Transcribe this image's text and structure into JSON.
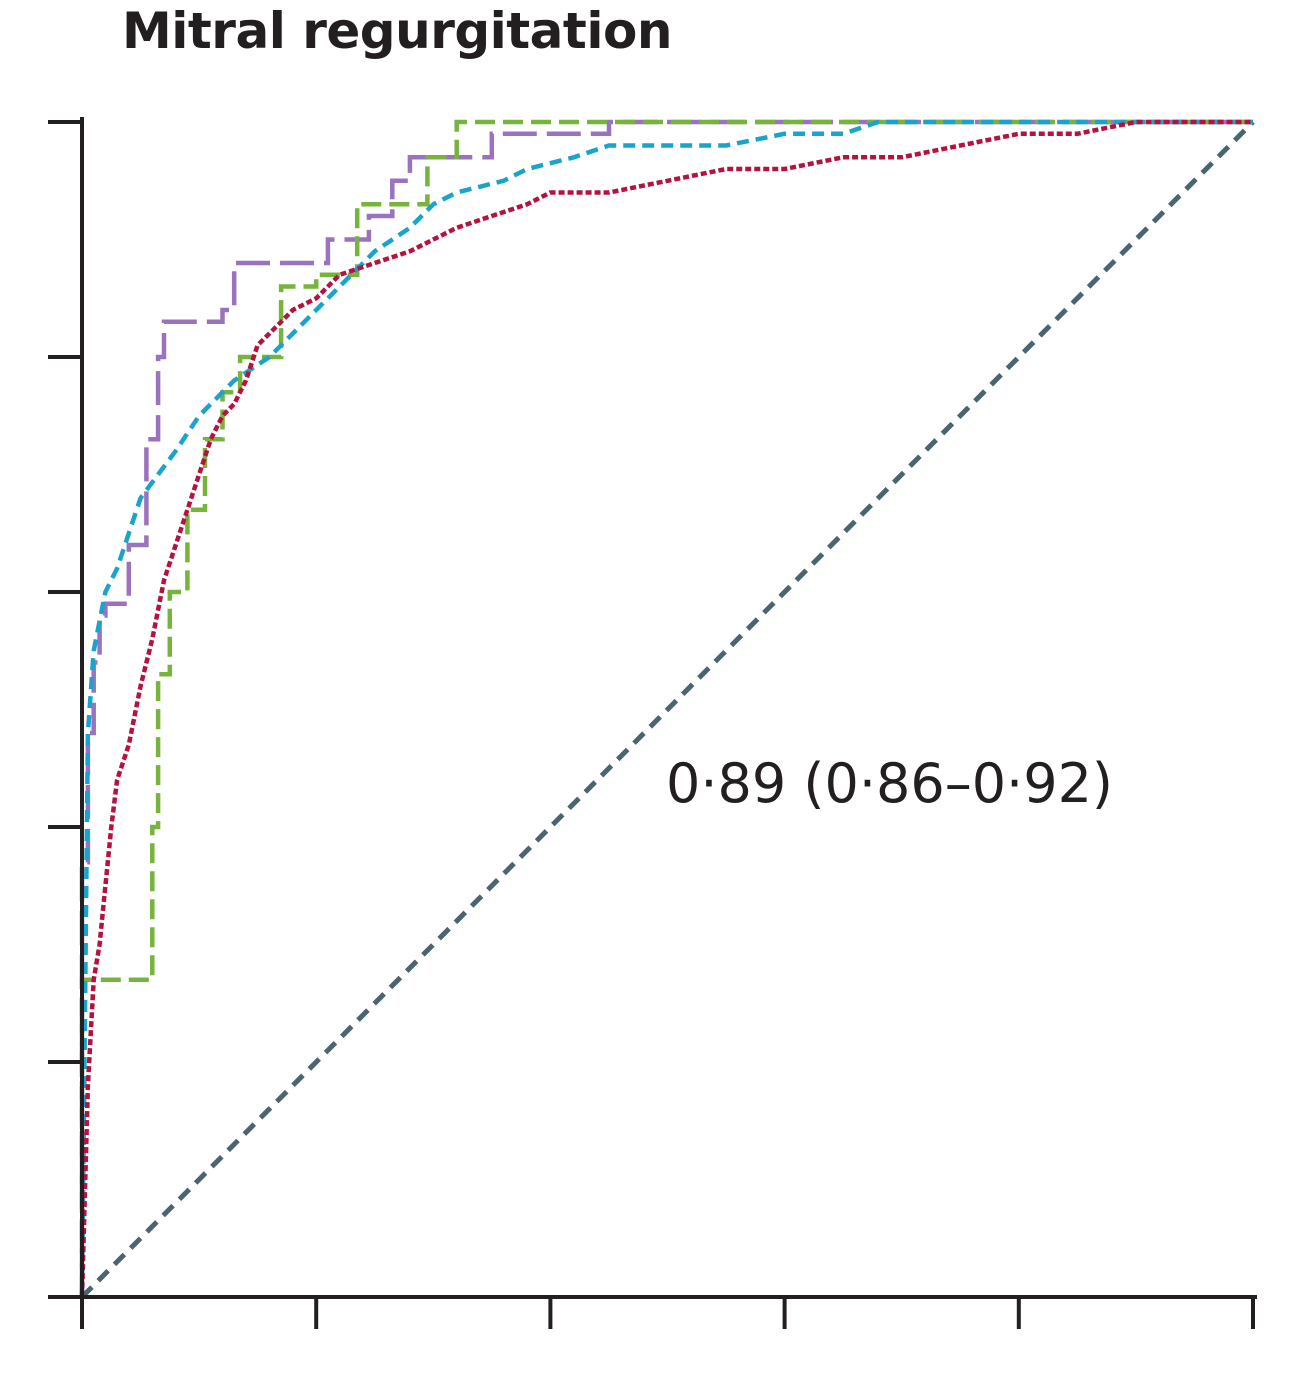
{
  "chart_data": {
    "type": "line",
    "title": "Mitral regurgitation",
    "xlabel": "",
    "ylabel": "",
    "xlim": [
      0,
      1
    ],
    "ylim": [
      0,
      1
    ],
    "grid": false,
    "x_ticks": [
      0,
      0.2,
      0.4,
      0.6,
      0.8,
      1.0
    ],
    "y_ticks": [
      0,
      0.2,
      0.4,
      0.6,
      0.8,
      1.0
    ],
    "annotation": "0·89 (0·86–0·92)",
    "colors": {
      "purple": "#9b72c0",
      "green": "#76b43c",
      "cyan": "#1aa3cd",
      "crimson": "#b5123e",
      "reference": "#4a6470",
      "axis": "#231f20"
    },
    "series": [
      {
        "color": "purple",
        "dash": "long",
        "x": [
          0,
          0,
          0.005,
          0.005,
          0.01,
          0.01,
          0.015,
          0.015,
          0.02,
          0.02,
          0.04,
          0.04,
          0.055,
          0.055,
          0.065,
          0.065,
          0.07,
          0.07,
          0.12,
          0.12,
          0.13,
          0.13,
          0.21,
          0.21,
          0.245,
          0.245,
          0.265,
          0.265,
          0.28,
          0.28,
          0.35,
          0.35,
          0.45,
          0.45,
          1.0
        ],
        "y": [
          0,
          0.37,
          0.37,
          0.48,
          0.48,
          0.54,
          0.54,
          0.58,
          0.58,
          0.59,
          0.59,
          0.64,
          0.64,
          0.73,
          0.73,
          0.8,
          0.8,
          0.83,
          0.83,
          0.84,
          0.84,
          0.88,
          0.88,
          0.9,
          0.9,
          0.92,
          0.92,
          0.95,
          0.95,
          0.97,
          0.97,
          0.99,
          0.99,
          1.0,
          1.0
        ]
      },
      {
        "color": "green",
        "dash": "medium",
        "x": [
          0,
          0,
          0.01,
          0.01,
          0.06,
          0.06,
          0.065,
          0.065,
          0.075,
          0.075,
          0.09,
          0.09,
          0.105,
          0.105,
          0.12,
          0.12,
          0.135,
          0.135,
          0.17,
          0.17,
          0.2,
          0.2,
          0.235,
          0.235,
          0.295,
          0.295,
          0.32,
          0.32,
          1.0
        ],
        "y": [
          0,
          0.27,
          0.27,
          0.27,
          0.27,
          0.4,
          0.4,
          0.53,
          0.53,
          0.6,
          0.6,
          0.67,
          0.67,
          0.73,
          0.73,
          0.77,
          0.77,
          0.8,
          0.8,
          0.86,
          0.86,
          0.87,
          0.87,
          0.93,
          0.93,
          0.97,
          0.97,
          1.0,
          1.0
        ]
      },
      {
        "color": "cyan",
        "dash": "short",
        "x": [
          0,
          0.005,
          0.01,
          0.02,
          0.03,
          0.04,
          0.05,
          0.065,
          0.08,
          0.1,
          0.13,
          0.16,
          0.2,
          0.22,
          0.25,
          0.28,
          0.3,
          0.32,
          0.36,
          0.38,
          0.42,
          0.45,
          0.5,
          0.55,
          0.6,
          0.65,
          0.68,
          1.0
        ],
        "y": [
          0,
          0.48,
          0.55,
          0.6,
          0.62,
          0.65,
          0.68,
          0.7,
          0.72,
          0.75,
          0.78,
          0.8,
          0.84,
          0.86,
          0.89,
          0.91,
          0.93,
          0.94,
          0.95,
          0.96,
          0.97,
          0.98,
          0.98,
          0.98,
          0.99,
          0.99,
          1.0,
          1.0
        ]
      },
      {
        "color": "crimson",
        "dash": "dotted",
        "x": [
          0,
          0.005,
          0.01,
          0.015,
          0.02,
          0.025,
          0.03,
          0.04,
          0.05,
          0.06,
          0.07,
          0.08,
          0.09,
          0.1,
          0.11,
          0.12,
          0.13,
          0.14,
          0.15,
          0.16,
          0.17,
          0.18,
          0.2,
          0.22,
          0.25,
          0.28,
          0.3,
          0.32,
          0.35,
          0.38,
          0.4,
          0.45,
          0.5,
          0.55,
          0.6,
          0.65,
          0.7,
          0.75,
          0.8,
          0.85,
          0.9,
          1.0
        ],
        "y": [
          0,
          0.18,
          0.27,
          0.3,
          0.35,
          0.4,
          0.44,
          0.47,
          0.52,
          0.56,
          0.61,
          0.64,
          0.67,
          0.7,
          0.73,
          0.75,
          0.76,
          0.78,
          0.81,
          0.82,
          0.83,
          0.84,
          0.85,
          0.87,
          0.88,
          0.89,
          0.9,
          0.91,
          0.92,
          0.93,
          0.94,
          0.94,
          0.95,
          0.96,
          0.96,
          0.97,
          0.97,
          0.98,
          0.99,
          0.99,
          1.0,
          1.0
        ]
      },
      {
        "color": "reference",
        "dash": "reference",
        "x": [
          0,
          1
        ],
        "y": [
          0,
          1
        ]
      }
    ]
  }
}
